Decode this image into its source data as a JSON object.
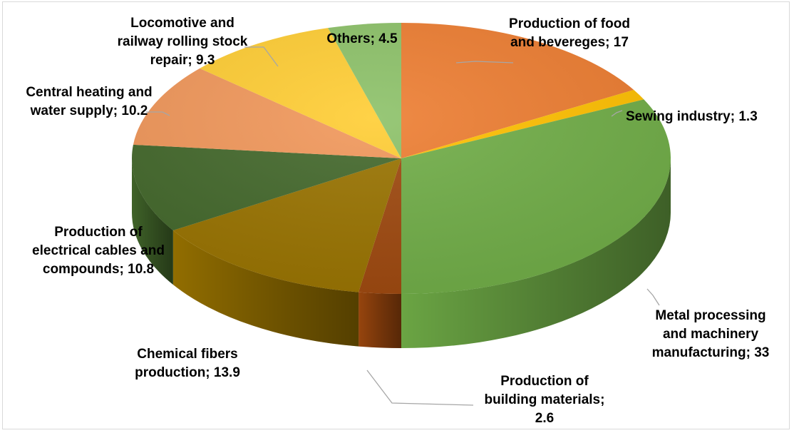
{
  "chart_data": {
    "type": "pie",
    "style": "3d-pie",
    "title": "",
    "legend": "none",
    "slices": [
      {
        "label": "Production of food and bevereges; 17",
        "lines": [
          "Production of food",
          "and bevereges; 17"
        ],
        "value": 17,
        "color": "#ED7D31"
      },
      {
        "label": "Sewing industry; 1.3",
        "lines": [
          "Sewing industry; 1.3"
        ],
        "value": 1.3,
        "color": "#FFC000"
      },
      {
        "label": "Metal processing and machinery manufacturing; 33",
        "lines": [
          "Metal processing",
          "and machinery",
          "manufacturing; 33"
        ],
        "value": 33,
        "color": "#70AD47"
      },
      {
        "label": "Production of building materials; 2.6",
        "lines": [
          "Production of",
          "building materials;",
          "2.6"
        ],
        "value": 2.6,
        "color": "#9E480E"
      },
      {
        "label": "Chemical fibers production; 13.9",
        "lines": [
          "Chemical fibers",
          "production; 13.9"
        ],
        "value": 13.9,
        "color": "#997300"
      },
      {
        "label": "Production of electrical cables and compounds; 10.8",
        "lines": [
          "Production of",
          "electrical cables and",
          "compounds; 10.8"
        ],
        "value": 10.8,
        "color": "#43682B"
      },
      {
        "label": "Central heating and water supply; 10.2",
        "lines": [
          "Central heating and",
          "water supply; 10.2"
        ],
        "value": 10.2,
        "color": "#F1975A"
      },
      {
        "label": "Locomotive and railway rolling stock repair; 9.3",
        "lines": [
          "Locomotive and",
          "railway rolling stock",
          "repair; 9.3"
        ],
        "value": 9.3,
        "color": "#FFCD33"
      },
      {
        "label": "Others; 4.5",
        "lines": [
          "Others; 4.5"
        ],
        "value": 4.5,
        "color": "#8CC168"
      }
    ]
  }
}
